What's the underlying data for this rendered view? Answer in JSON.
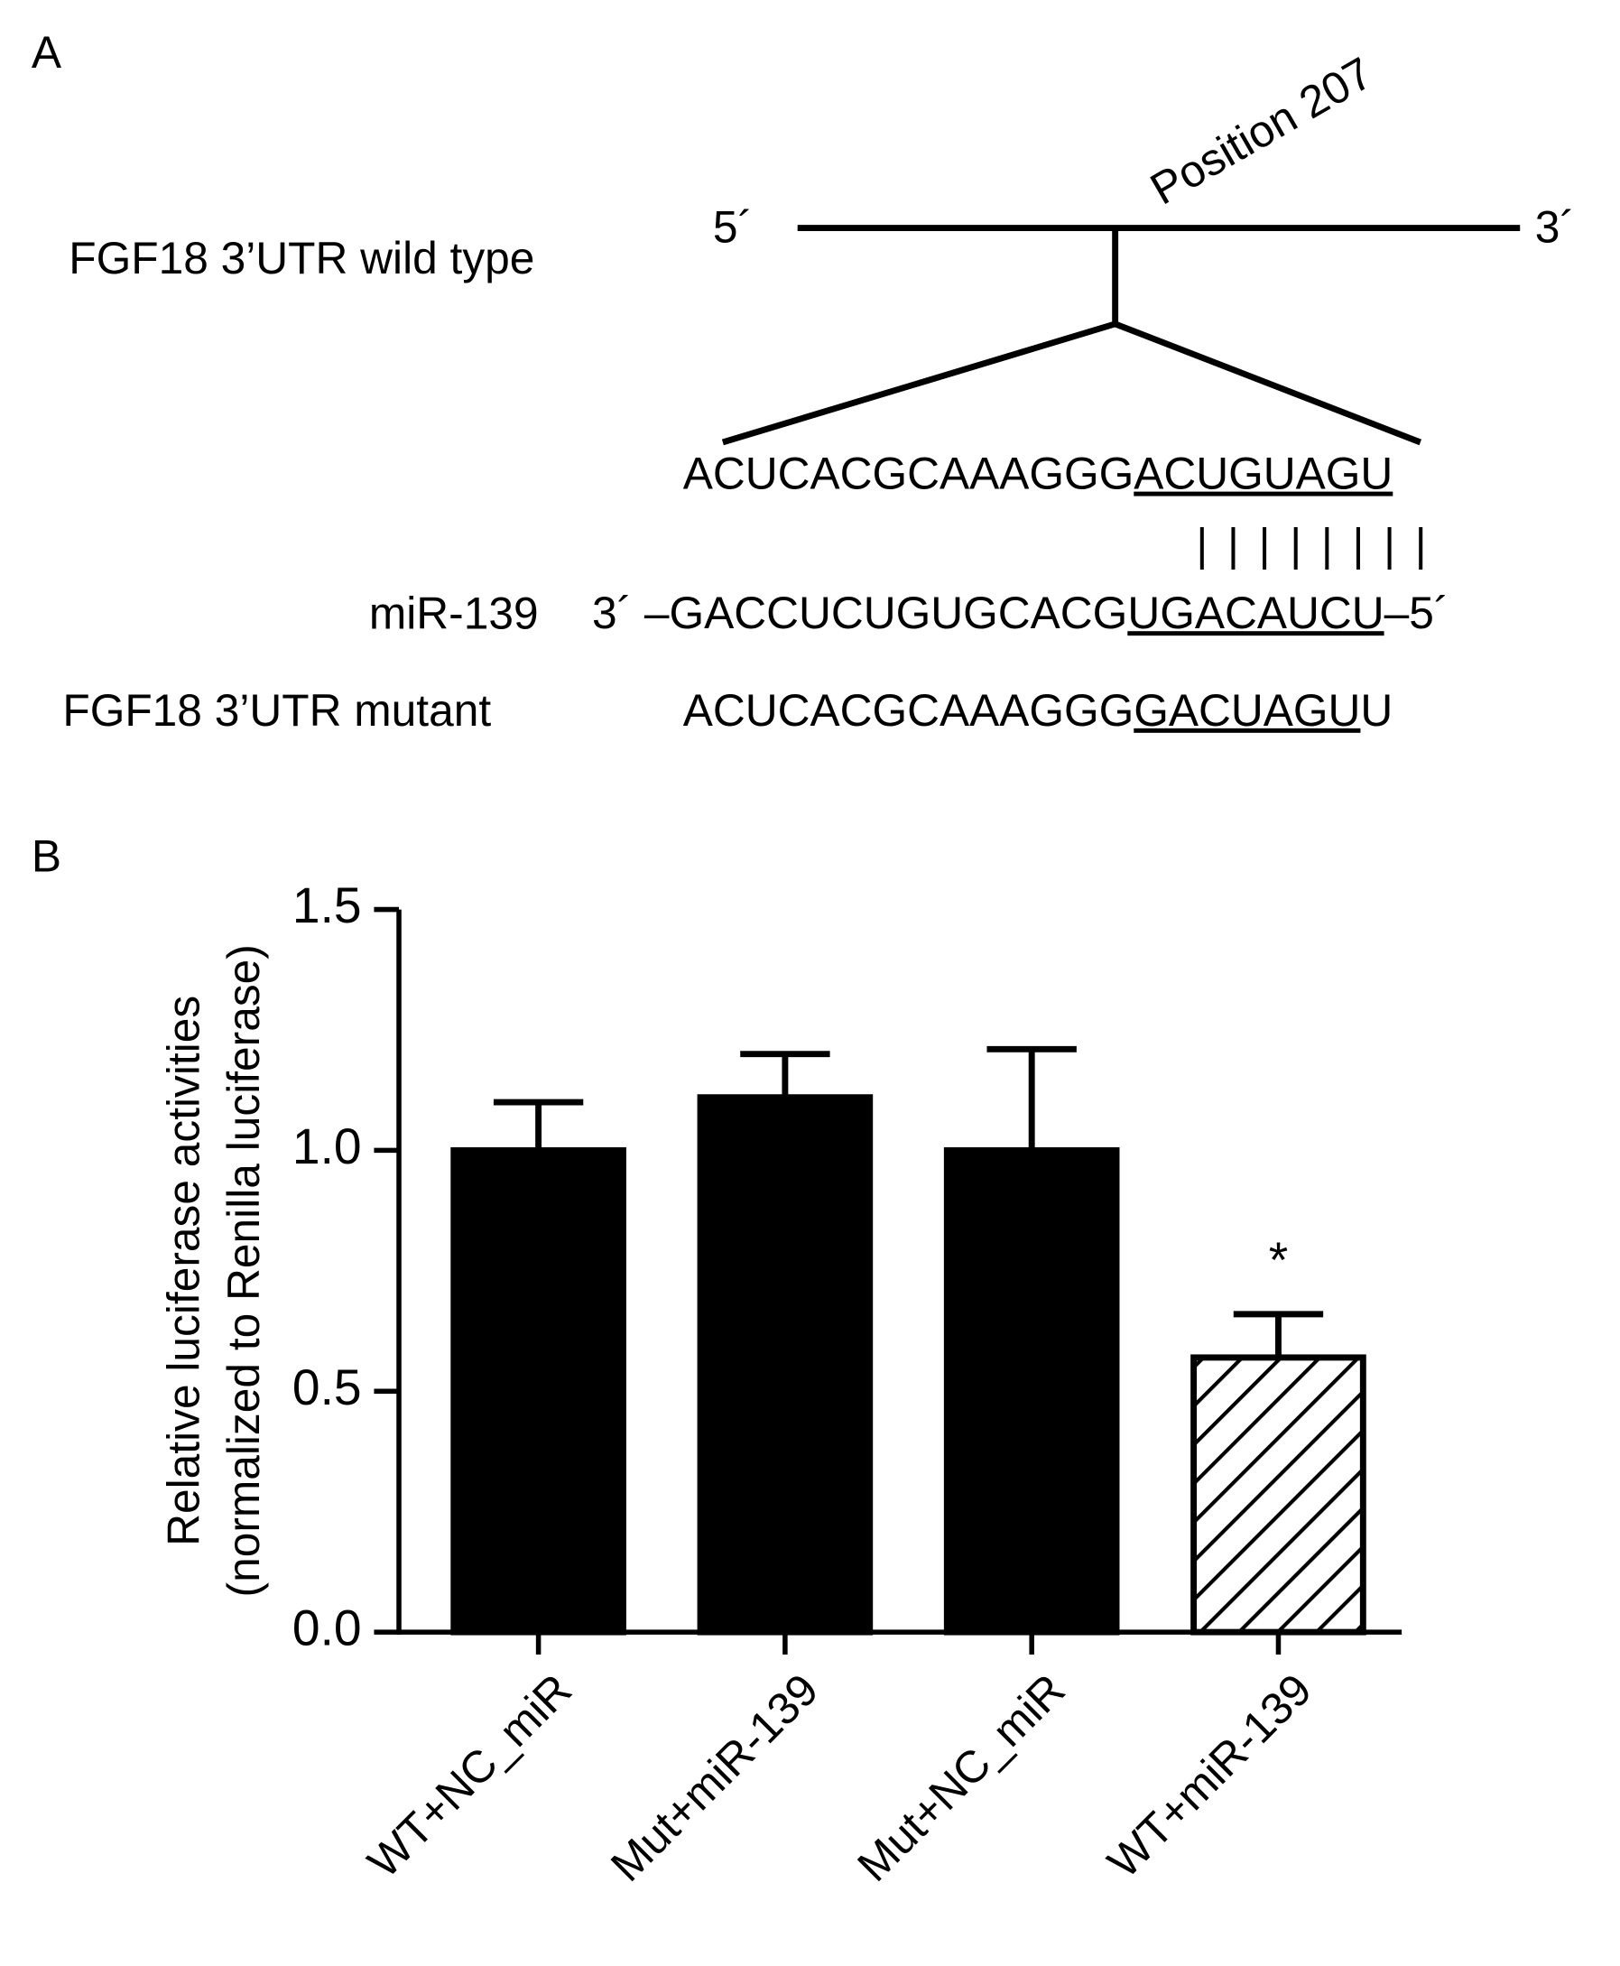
{
  "diagram": {
    "panel_label": "A",
    "wild_type_label": "FGF18 3’UTR wild type",
    "five_prime": "5´",
    "three_prime": "3´",
    "position": "Position 207",
    "wild_type_sequence": [
      "ACUCACGCAAAGGG",
      "ACUGUAGU"
    ],
    "pairing": "| | | | | | | |",
    "mirna_label": "miR-139",
    "mirna_sequence": [
      "3´ –GACCUCUGUGCACG",
      "UGACAUCU",
      "–5´"
    ],
    "mutant_label": "FGF18 3’UTR mutant",
    "mutant_sequence": [
      "ACUCACGCAAAGGG",
      "GACUAGU",
      "U"
    ]
  },
  "chart_data": {
    "type": "bar",
    "panel_label": "B",
    "ylabel": [
      "Relative luciferase activities",
      "(normalized to Renilla luciferase)"
    ],
    "categories": [
      "WT+NC_miR",
      "Mut+miR-139",
      "Mut+NC_miR",
      "WT+miR-139"
    ],
    "values": [
      1.0,
      1.11,
      1.0,
      0.57
    ],
    "errors": [
      0.1,
      0.09,
      0.21,
      0.09
    ],
    "colors": [
      "#000000",
      "#000000",
      "#000000",
      "#000000"
    ],
    "hatch": [
      false,
      false,
      false,
      true
    ],
    "annotations": [
      {
        "category": 3,
        "text": "*"
      }
    ],
    "ylim": [
      0,
      1.5
    ],
    "yticks": [
      {
        "value": 0,
        "label": "0.0"
      },
      0.5,
      {
        "value": 1,
        "label": "1.0"
      },
      1.5
    ],
    "grid": false
  }
}
